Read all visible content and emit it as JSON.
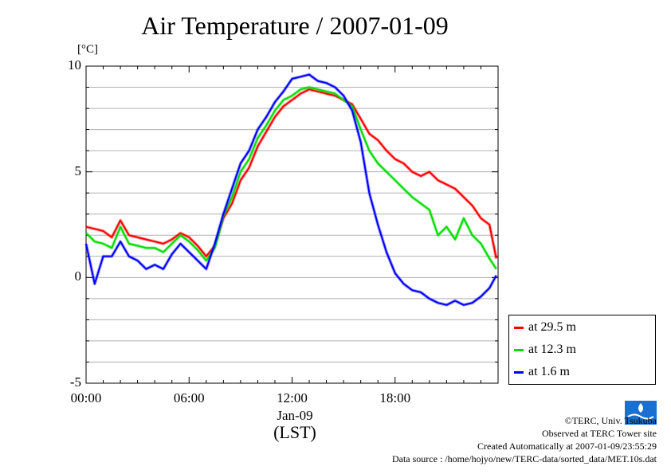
{
  "title": "Air Temperature / 2007-01-09",
  "unit_label": "[°C]",
  "date_label": "Jan-09",
  "timezone_label": "(LST)",
  "legend": [
    {
      "label": "at 29.5 m",
      "color": "#ff0000"
    },
    {
      "label": "at 12.3 m",
      "color": "#00dd00"
    },
    {
      "label": "at 1.6 m",
      "color": "#0000ff"
    }
  ],
  "credits": [
    "©TERC, Univ. Tsukuba",
    "Observed at TERC Tower site",
    "Created Automatically at 2007-01-09/23:55:29",
    "Data source : /home/hojyo/new/TERC-data/sorted_data/MET.10s.dat"
  ],
  "logo_text": "TERC",
  "chart_data": {
    "type": "line",
    "title": "Air Temperature / 2007-01-09",
    "ylabel": "[°C]",
    "xlabel": "(LST)",
    "xlim": [
      0,
      24
    ],
    "ylim": [
      -5,
      10
    ],
    "x_ticks": [
      {
        "value": 0,
        "label": "00:00"
      },
      {
        "value": 6,
        "label": "06:00"
      },
      {
        "value": 12,
        "label": "12:00"
      },
      {
        "value": 18,
        "label": "18:00"
      }
    ],
    "y_ticks": [
      {
        "value": -5,
        "label": "-5"
      },
      {
        "value": 0,
        "label": "0"
      },
      {
        "value": 5,
        "label": "5"
      },
      {
        "value": 10,
        "label": "10"
      }
    ],
    "grid": true,
    "legend_position": "right",
    "x": [
      0,
      0.5,
      1,
      1.5,
      2,
      2.5,
      3,
      3.5,
      4,
      4.5,
      5,
      5.5,
      6,
      6.5,
      7,
      7.5,
      8,
      8.5,
      9,
      9.5,
      10,
      10.5,
      11,
      11.5,
      12,
      12.5,
      13,
      13.5,
      14,
      14.5,
      15,
      15.5,
      16,
      16.5,
      17,
      17.5,
      18,
      18.5,
      19,
      19.5,
      20,
      20.5,
      21,
      21.5,
      22,
      22.5,
      23,
      23.5,
      23.9
    ],
    "series": [
      {
        "name": "at 29.5 m",
        "color": "#ff0000",
        "values": [
          2.4,
          2.3,
          2.2,
          1.9,
          2.7,
          2.0,
          1.9,
          1.8,
          1.7,
          1.6,
          1.8,
          2.1,
          1.9,
          1.5,
          1.0,
          1.5,
          2.8,
          3.5,
          4.6,
          5.2,
          6.2,
          6.9,
          7.6,
          8.1,
          8.4,
          8.7,
          8.9,
          8.8,
          8.7,
          8.6,
          8.4,
          8.2,
          7.5,
          6.8,
          6.5,
          6.0,
          5.6,
          5.4,
          5.0,
          4.8,
          5.0,
          4.6,
          4.4,
          4.2,
          3.8,
          3.4,
          2.8,
          2.5,
          0.9
        ]
      },
      {
        "name": "at 12.3 m",
        "color": "#00dd00",
        "values": [
          2.1,
          1.7,
          1.6,
          1.4,
          2.4,
          1.6,
          1.5,
          1.4,
          1.4,
          1.2,
          1.6,
          2.0,
          1.7,
          1.3,
          0.8,
          1.4,
          2.9,
          3.8,
          5.0,
          5.6,
          6.6,
          7.2,
          7.9,
          8.4,
          8.6,
          8.9,
          9.0,
          8.9,
          8.8,
          8.7,
          8.4,
          8.1,
          7.0,
          6.0,
          5.4,
          5.0,
          4.6,
          4.2,
          3.8,
          3.5,
          3.2,
          2.0,
          2.4,
          1.8,
          2.8,
          2.0,
          1.6,
          0.9,
          0.4
        ]
      },
      {
        "name": "at 1.6 m",
        "color": "#0000ff",
        "values": [
          1.6,
          -0.3,
          1.0,
          1.0,
          1.7,
          1.0,
          0.8,
          0.4,
          0.6,
          0.4,
          1.1,
          1.6,
          1.2,
          0.8,
          0.4,
          1.6,
          3.0,
          4.2,
          5.4,
          6.0,
          7.0,
          7.6,
          8.3,
          8.8,
          9.4,
          9.5,
          9.6,
          9.3,
          9.2,
          9.0,
          8.6,
          7.9,
          6.4,
          4.0,
          2.5,
          1.2,
          0.2,
          -0.3,
          -0.6,
          -0.7,
          -1.0,
          -1.2,
          -1.3,
          -1.1,
          -1.3,
          -1.2,
          -0.9,
          -0.5,
          0.1
        ]
      }
    ]
  }
}
